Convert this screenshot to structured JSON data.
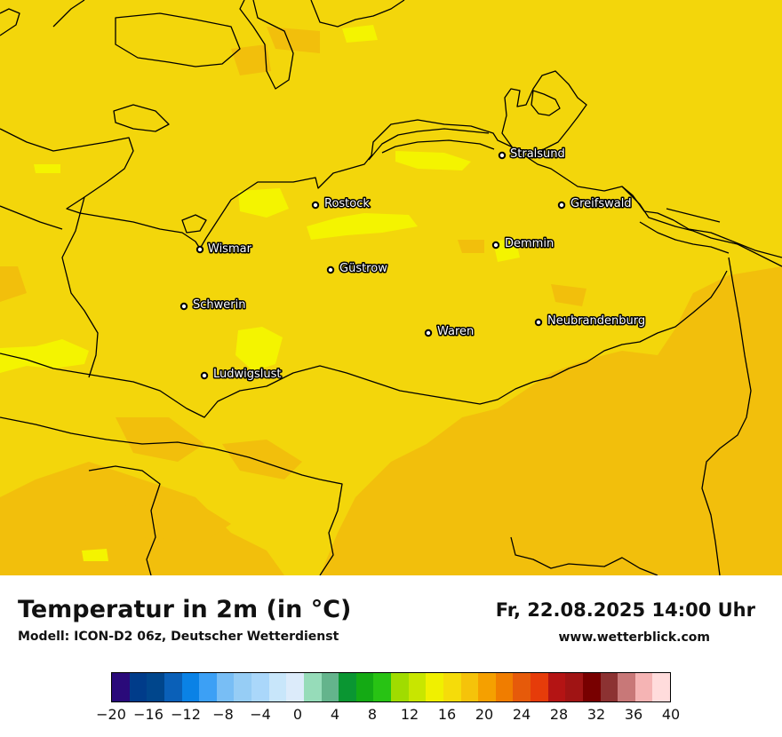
{
  "title": "Temperatur in 2m (in °C)",
  "model": "Modell: ICON-D2 06z, Deutscher Wetterdienst",
  "datetime": "Fr, 22.08.2025 14:00 Uhr",
  "website": "www.wetterblick.com",
  "cities": [
    {
      "name": "Stralsund"
    },
    {
      "name": "Rostock"
    },
    {
      "name": "Greifswald"
    },
    {
      "name": "Wismar"
    },
    {
      "name": "Demmin"
    },
    {
      "name": "Güstrow"
    },
    {
      "name": "Schwerin"
    },
    {
      "name": "Neubrandenburg"
    },
    {
      "name": "Waren"
    },
    {
      "name": "Ludwigslust"
    }
  ],
  "legend": {
    "tick_labels": [
      "−20",
      "−16",
      "−12",
      "−8",
      "−4",
      "0",
      "4",
      "8",
      "12",
      "16",
      "20",
      "24",
      "28",
      "32",
      "36",
      "40"
    ],
    "min": -20,
    "max": 40,
    "colors": [
      "#2a0a7a",
      "#003c8a",
      "#00468c",
      "#0a60b8",
      "#0a82e6",
      "#3ca0f5",
      "#78bef5",
      "#96cdf5",
      "#aad7fa",
      "#c8e6fa",
      "#dcebfa",
      "#96dcb9",
      "#64b48c",
      "#0a9632",
      "#14aa14",
      "#28c314",
      "#a0dc00",
      "#c8e600",
      "#f0f000",
      "#f5dc0a",
      "#f5c30a",
      "#f5a000",
      "#f07d00",
      "#e65a0a",
      "#e63c0a",
      "#b41414",
      "#a01414",
      "#780000",
      "#8c3232",
      "#c87878",
      "#f5b4b4",
      "#ffdcdc"
    ]
  },
  "map_colors": {
    "base": "#f3d60b",
    "warm": "#f2bf0c",
    "cool": "#f4f400",
    "border": "#000000"
  }
}
